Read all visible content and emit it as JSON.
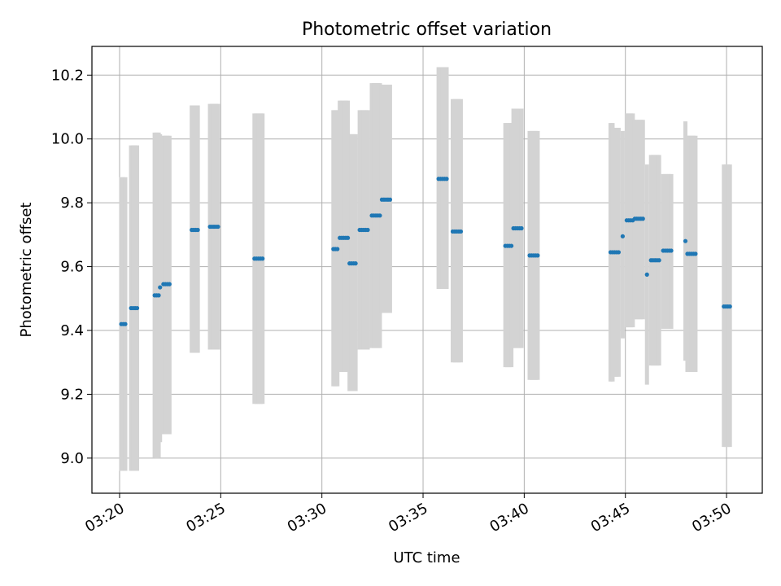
{
  "chart_data": {
    "type": "scatter",
    "title": "Photometric offset variation",
    "xlabel": "UTC time",
    "ylabel": "Photometric offset",
    "xlim": [
      "03:18:38",
      "03:51:46"
    ],
    "ylim": [
      8.89,
      10.29
    ],
    "grid": true,
    "error_color": "#d3d3d3",
    "point_color": "#1f77b4",
    "x_ticks": [
      "03:20",
      "03:25",
      "03:30",
      "03:35",
      "03:40",
      "03:45",
      "03:50"
    ],
    "y_ticks": [
      "9.0",
      "9.2",
      "9.4",
      "9.6",
      "9.8",
      "10.0",
      "10.2"
    ],
    "groups": [
      {
        "times": [
          "03:20:05",
          "03:20:11",
          "03:20:17"
        ],
        "y": 9.42,
        "lo": 8.96,
        "hi": 9.88
      },
      {
        "times": [
          "03:20:34",
          "03:20:40",
          "03:20:46",
          "03:20:52"
        ],
        "y": 9.47,
        "lo": 8.96,
        "hi": 9.98
      },
      {
        "times": [
          "03:21:44",
          "03:21:50",
          "03:21:56"
        ],
        "y": 9.51,
        "lo": 9.0,
        "hi": 10.02
      },
      {
        "times": [
          "03:22:00"
        ],
        "y": 9.535,
        "lo": 9.05,
        "hi": 10.015
      },
      {
        "times": [
          "03:22:10",
          "03:22:16",
          "03:22:22",
          "03:22:28"
        ],
        "y": 9.545,
        "lo": 9.075,
        "hi": 10.01
      },
      {
        "times": [
          "03:23:34",
          "03:23:40",
          "03:23:46",
          "03:23:52"
        ],
        "y": 9.715,
        "lo": 9.33,
        "hi": 10.105
      },
      {
        "times": [
          "03:24:28",
          "03:24:34",
          "03:24:40",
          "03:24:46",
          "03:24:52"
        ],
        "y": 9.725,
        "lo": 9.34,
        "hi": 10.11
      },
      {
        "times": [
          "03:26:40",
          "03:26:46",
          "03:26:52",
          "03:26:58",
          "03:27:04"
        ],
        "y": 9.625,
        "lo": 9.17,
        "hi": 10.08
      },
      {
        "times": [
          "03:30:34",
          "03:30:40",
          "03:30:46"
        ],
        "y": 9.655,
        "lo": 9.225,
        "hi": 10.09
      },
      {
        "times": [
          "03:30:53",
          "03:30:59",
          "03:31:05",
          "03:31:11",
          "03:31:17"
        ],
        "y": 9.69,
        "lo": 9.27,
        "hi": 10.12
      },
      {
        "times": [
          "03:31:22",
          "03:31:28",
          "03:31:34",
          "03:31:40"
        ],
        "y": 9.61,
        "lo": 9.21,
        "hi": 10.015
      },
      {
        "times": [
          "03:31:52",
          "03:31:58",
          "03:32:04",
          "03:32:10",
          "03:32:16"
        ],
        "y": 9.715,
        "lo": 9.34,
        "hi": 10.09
      },
      {
        "times": [
          "03:32:28",
          "03:32:34",
          "03:32:40",
          "03:32:46",
          "03:32:52"
        ],
        "y": 9.76,
        "lo": 9.345,
        "hi": 10.175
      },
      {
        "times": [
          "03:32:58",
          "03:33:04",
          "03:33:10",
          "03:33:16",
          "03:33:22"
        ],
        "y": 9.81,
        "lo": 9.455,
        "hi": 10.17
      },
      {
        "times": [
          "03:35:46",
          "03:35:52",
          "03:35:58",
          "03:36:04",
          "03:36:10"
        ],
        "y": 9.875,
        "lo": 9.53,
        "hi": 10.225
      },
      {
        "times": [
          "03:36:28",
          "03:36:34",
          "03:36:40",
          "03:36:46",
          "03:36:52"
        ],
        "y": 9.71,
        "lo": 9.3,
        "hi": 10.125
      },
      {
        "times": [
          "03:39:04",
          "03:39:10",
          "03:39:16",
          "03:39:22"
        ],
        "y": 9.665,
        "lo": 9.285,
        "hi": 10.05
      },
      {
        "times": [
          "03:39:28",
          "03:39:34",
          "03:39:40",
          "03:39:46",
          "03:39:52"
        ],
        "y": 9.72,
        "lo": 9.345,
        "hi": 10.095
      },
      {
        "times": [
          "03:40:16",
          "03:40:22",
          "03:40:28",
          "03:40:34",
          "03:40:40"
        ],
        "y": 9.635,
        "lo": 9.245,
        "hi": 10.025
      },
      {
        "times": [
          "03:44:16",
          "03:44:22"
        ],
        "y": 9.645,
        "lo": 9.24,
        "hi": 10.05
      },
      {
        "times": [
          "03:44:28",
          "03:44:34",
          "03:44:40"
        ],
        "y": 9.645,
        "lo": 9.255,
        "hi": 10.035
      },
      {
        "times": [
          "03:44:52"
        ],
        "y": 9.695,
        "lo": 9.375,
        "hi": 10.025
      },
      {
        "times": [
          "03:45:04",
          "03:45:10",
          "03:45:16",
          "03:45:22"
        ],
        "y": 9.745,
        "lo": 9.41,
        "hi": 10.08
      },
      {
        "times": [
          "03:45:28",
          "03:45:34",
          "03:45:40",
          "03:45:46",
          "03:45:52"
        ],
        "y": 9.75,
        "lo": 9.435,
        "hi": 10.06
      },
      {
        "times": [
          "03:46:04"
        ],
        "y": 9.575,
        "lo": 9.23,
        "hi": 9.92
      },
      {
        "times": [
          "03:46:16",
          "03:46:22",
          "03:46:28",
          "03:46:34",
          "03:46:40"
        ],
        "y": 9.62,
        "lo": 9.29,
        "hi": 9.95
      },
      {
        "times": [
          "03:46:52",
          "03:46:58",
          "03:47:04",
          "03:47:10",
          "03:47:16"
        ],
        "y": 9.65,
        "lo": 9.405,
        "hi": 9.89
      },
      {
        "times": [
          "03:47:58"
        ],
        "y": 9.68,
        "lo": 9.305,
        "hi": 10.055
      },
      {
        "times": [
          "03:48:04",
          "03:48:10",
          "03:48:16",
          "03:48:22",
          "03:48:28"
        ],
        "y": 9.64,
        "lo": 9.27,
        "hi": 10.01
      },
      {
        "times": [
          "03:49:52",
          "03:49:58",
          "03:50:04",
          "03:50:10"
        ],
        "y": 9.475,
        "lo": 9.035,
        "hi": 9.92
      }
    ]
  }
}
